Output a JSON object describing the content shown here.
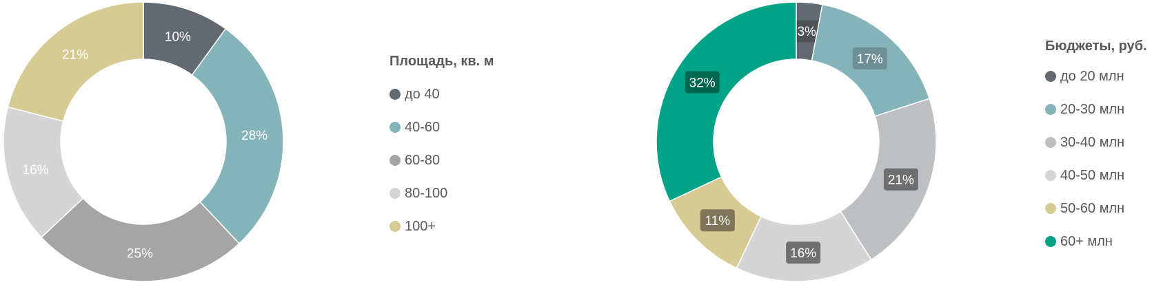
{
  "chart_data": [
    {
      "type": "pie",
      "donut": true,
      "title": "Площадь, кв. м",
      "categories": [
        "до 40",
        "40-60",
        "60-80",
        "80-100",
        "100+"
      ],
      "values": [
        10,
        28,
        25,
        16,
        21
      ],
      "labels": [
        "10%",
        "28%",
        "25%",
        "16%",
        "21%"
      ],
      "colors": [
        "#636970",
        "#84B4BA",
        "#A5A5A5",
        "#D5D5D5",
        "#D6CB93"
      ],
      "legend": "right"
    },
    {
      "type": "pie",
      "donut": true,
      "title": "Бюджеты, руб.",
      "categories": [
        "до 20 млн",
        "20-30 млн",
        "30-40 млн",
        "40-50 млн",
        "50-60 млн",
        "60+ млн"
      ],
      "values": [
        3,
        17,
        21,
        16,
        11,
        32
      ],
      "labels": [
        "3%",
        "17%",
        "21%",
        "16%",
        "11%",
        "32%"
      ],
      "colors": [
        "#636970",
        "#84B4BA",
        "#BCC0C3",
        "#D5D5D5",
        "#D6CB93",
        "#00A386"
      ],
      "legend": "right"
    }
  ]
}
